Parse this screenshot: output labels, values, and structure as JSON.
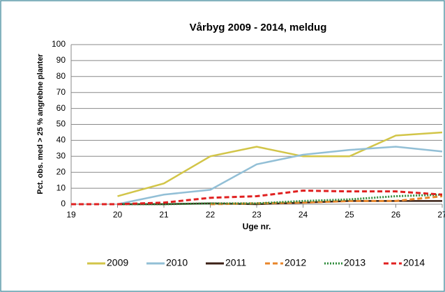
{
  "chart_data": {
    "type": "line",
    "title": "Vårbyg 2009 - 2014, meldug",
    "xlabel": "Uge nr.",
    "ylabel": "Pct. obs. med > 25 % angrebne planter",
    "x": [
      19,
      20,
      21,
      22,
      23,
      24,
      25,
      26,
      27
    ],
    "xlim": [
      19,
      27
    ],
    "xticks": [
      19,
      20,
      21,
      22,
      23,
      24,
      25,
      26,
      27
    ],
    "ylim": [
      0,
      100
    ],
    "yticks": [
      0,
      10,
      20,
      30,
      40,
      50,
      60,
      70,
      80,
      90,
      100
    ],
    "grid": true,
    "legend": "bottom",
    "series": [
      {
        "name": "2009",
        "color": "#d2c548",
        "style": "solid",
        "values": [
          null,
          5,
          13,
          30,
          36,
          30,
          30,
          43,
          45
        ]
      },
      {
        "name": "2010",
        "color": "#92bfd6",
        "style": "solid",
        "values": [
          null,
          0,
          6,
          9,
          25,
          31,
          34,
          36,
          33
        ]
      },
      {
        "name": "2011",
        "color": "#3b2016",
        "style": "solid",
        "values": [
          null,
          0,
          0,
          0.5,
          0,
          1,
          2,
          2,
          2
        ]
      },
      {
        "name": "2012",
        "color": "#e8862a",
        "style": "dashed",
        "values": [
          null,
          null,
          null,
          0,
          0.5,
          1,
          2,
          2,
          5
        ]
      },
      {
        "name": "2013",
        "color": "#2e8b3a",
        "style": "dotted",
        "values": [
          null,
          0,
          0,
          0.5,
          0.5,
          2,
          3,
          5,
          6
        ]
      },
      {
        "name": "2014",
        "color": "#e02020",
        "style": "dashed",
        "values": [
          0,
          0,
          1,
          4,
          5,
          8.5,
          8,
          8,
          6
        ]
      }
    ]
  }
}
